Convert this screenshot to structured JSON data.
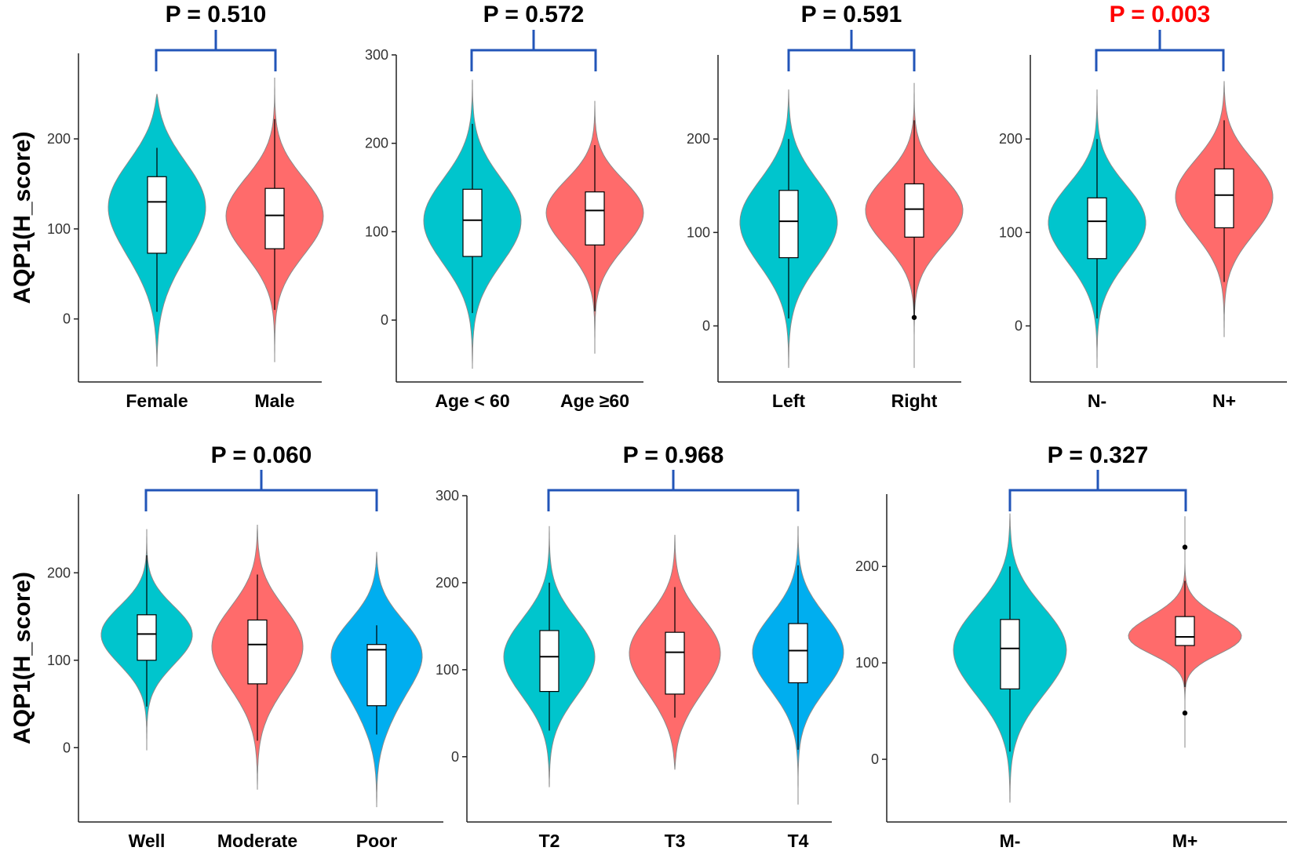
{
  "colors": {
    "teal": "#00C5CD",
    "salmon": "#FF6B6B",
    "blue": "#00AEEF",
    "bracket": "#2255B8",
    "significant": "#FF0000",
    "text": "#000000"
  },
  "chart_data": [
    {
      "type": "violin",
      "title": "P = 0.510",
      "significant": false,
      "ylabel": "AQP1(H_score)",
      "ylim": [
        -70,
        295
      ],
      "yticks": [
        0,
        100,
        200
      ],
      "categories": [
        "Female",
        "Male"
      ],
      "colors": [
        "#00C5CD",
        "#FF6B6B"
      ],
      "violin_range": [
        [
          -53,
          250
        ],
        [
          -48,
          268
        ]
      ],
      "whisker": [
        [
          8,
          190
        ],
        [
          10,
          222
        ]
      ],
      "box": [
        {
          "q1": 73,
          "median": 130,
          "q3": 158
        },
        {
          "q1": 78,
          "median": 115,
          "q3": 145
        }
      ],
      "outliers": [
        [],
        []
      ]
    },
    {
      "type": "violin",
      "title": "P = 0.572",
      "significant": false,
      "ylabel": "",
      "ylim": [
        -70,
        300
      ],
      "yticks": [
        0,
        100,
        200,
        300
      ],
      "categories": [
        "Age < 60",
        "Age ≥60"
      ],
      "colors": [
        "#00C5CD",
        "#FF6B6B"
      ],
      "violin_range": [
        [
          -55,
          272
        ],
        [
          -38,
          248
        ]
      ],
      "whisker": [
        [
          8,
          222
        ],
        [
          10,
          198
        ]
      ],
      "box": [
        {
          "q1": 72,
          "median": 113,
          "q3": 148
        },
        {
          "q1": 85,
          "median": 124,
          "q3": 145
        }
      ],
      "outliers": [
        [],
        []
      ]
    },
    {
      "type": "violin",
      "title": "P = 0.591",
      "significant": false,
      "ylabel": "",
      "ylim": [
        -60,
        290
      ],
      "yticks": [
        0,
        100,
        200
      ],
      "categories": [
        "Left",
        "Right"
      ],
      "colors": [
        "#00C5CD",
        "#FF6B6B"
      ],
      "violin_range": [
        [
          -45,
          253
        ],
        [
          -45,
          260
        ]
      ],
      "whisker": [
        [
          8,
          200
        ],
        [
          10,
          220
        ]
      ],
      "box": [
        {
          "q1": 73,
          "median": 112,
          "q3": 145
        },
        {
          "q1": 95,
          "median": 125,
          "q3": 152
        }
      ],
      "outliers": [
        [],
        [
          9
        ]
      ]
    },
    {
      "type": "violin",
      "title": "P = 0.003",
      "significant": true,
      "ylabel": "",
      "ylim": [
        -60,
        290
      ],
      "yticks": [
        0,
        100,
        200
      ],
      "categories": [
        "N-",
        "N+"
      ],
      "colors": [
        "#00C5CD",
        "#FF6B6B"
      ],
      "violin_range": [
        [
          -45,
          253
        ],
        [
          -12,
          262
        ]
      ],
      "whisker": [
        [
          8,
          200
        ],
        [
          47,
          220
        ]
      ],
      "box": [
        {
          "q1": 72,
          "median": 112,
          "q3": 137
        },
        {
          "q1": 105,
          "median": 140,
          "q3": 168
        }
      ],
      "outliers": [
        [],
        []
      ]
    },
    {
      "type": "violin",
      "title": "P = 0.060",
      "significant": false,
      "ylabel": "AQP1(H_score)",
      "ylim": [
        -85,
        290
      ],
      "yticks": [
        0,
        100,
        200
      ],
      "categories": [
        "Well",
        "Moderate",
        "Poor"
      ],
      "colors": [
        "#00C5CD",
        "#FF6B6B",
        "#00AEEF"
      ],
      "violin_range": [
        [
          -3,
          250
        ],
        [
          -48,
          255
        ],
        [
          -68,
          224
        ]
      ],
      "whisker": [
        [
          47,
          220
        ],
        [
          8,
          198
        ],
        [
          15,
          140
        ]
      ],
      "box": [
        {
          "q1": 100,
          "median": 130,
          "q3": 152
        },
        {
          "q1": 73,
          "median": 118,
          "q3": 146
        },
        {
          "q1": 48,
          "median": 112,
          "q3": 118
        }
      ],
      "outliers": [
        [],
        [],
        []
      ]
    },
    {
      "type": "violin",
      "title": "P = 0.968",
      "significant": false,
      "ylabel": "",
      "ylim": [
        -75,
        300
      ],
      "yticks": [
        0,
        100,
        200,
        300
      ],
      "categories": [
        "T2",
        "T3",
        "T4"
      ],
      "colors": [
        "#00C5CD",
        "#FF6B6B",
        "#00AEEF"
      ],
      "violin_range": [
        [
          -35,
          265
        ],
        [
          -15,
          255
        ],
        [
          -55,
          265
        ]
      ],
      "whisker": [
        [
          30,
          200
        ],
        [
          45,
          195
        ],
        [
          8,
          220
        ]
      ],
      "box": [
        {
          "q1": 75,
          "median": 115,
          "q3": 145
        },
        {
          "q1": 72,
          "median": 120,
          "q3": 143
        },
        {
          "q1": 85,
          "median": 122,
          "q3": 153
        }
      ],
      "outliers": [
        [],
        [],
        []
      ]
    },
    {
      "type": "violin",
      "title": "P = 0.327",
      "significant": false,
      "ylabel": "",
      "ylim": [
        -65,
        275
      ],
      "yticks": [
        0,
        100,
        200
      ],
      "categories": [
        "M-",
        "M+"
      ],
      "colors": [
        "#00C5CD",
        "#FF6B6B"
      ],
      "violin_range": [
        [
          -45,
          255
        ],
        [
          12,
          252
        ]
      ],
      "whisker": [
        [
          8,
          200
        ],
        [
          75,
          185
        ]
      ],
      "box": [
        {
          "q1": 73,
          "median": 115,
          "q3": 145
        },
        {
          "q1": 118,
          "median": 127,
          "q3": 148
        }
      ],
      "outliers": [
        [],
        [
          220,
          48
        ]
      ]
    }
  ]
}
